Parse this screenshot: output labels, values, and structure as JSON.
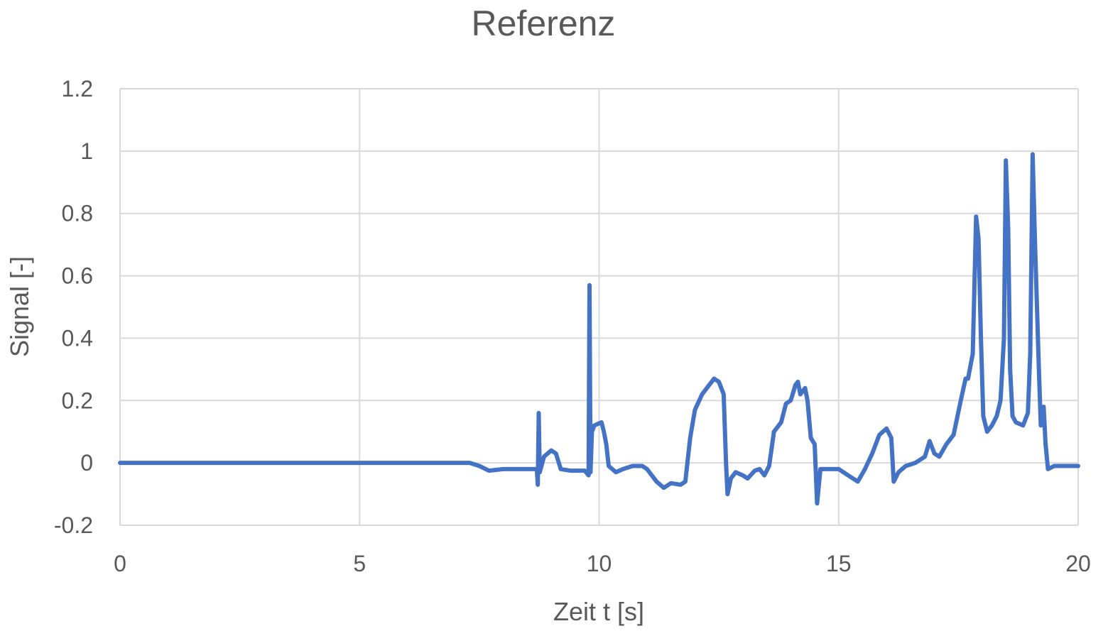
{
  "chart_data": {
    "type": "line",
    "title": "Referenz",
    "xlabel": "Zeit t [s]",
    "ylabel": "Signal [-]",
    "xlim": [
      0,
      20
    ],
    "ylim": [
      -0.2,
      1.2
    ],
    "x_ticks": [
      "0",
      "5",
      "10",
      "15",
      "20"
    ],
    "y_ticks": [
      "-0.2",
      "0",
      "0.2",
      "0.4",
      "0.6",
      "0.8",
      "1",
      "1.2"
    ],
    "grid": true,
    "legend": "none",
    "series": [
      {
        "color": "#4472c4",
        "points": [
          [
            0,
            0.0
          ],
          [
            1,
            0.0
          ],
          [
            2,
            0.0
          ],
          [
            3,
            0.0
          ],
          [
            4,
            0.0
          ],
          [
            5,
            0.0
          ],
          [
            6,
            0.0
          ],
          [
            7,
            0.0
          ],
          [
            7.3,
            0.0
          ],
          [
            7.5,
            -0.01
          ],
          [
            7.7,
            -0.025
          ],
          [
            8.0,
            -0.02
          ],
          [
            8.3,
            -0.02
          ],
          [
            8.6,
            -0.02
          ],
          [
            8.7,
            -0.02
          ],
          [
            8.72,
            -0.07
          ],
          [
            8.74,
            0.16
          ],
          [
            8.76,
            -0.03
          ],
          [
            8.85,
            0.02
          ],
          [
            9.0,
            0.04
          ],
          [
            9.1,
            0.03
          ],
          [
            9.2,
            -0.02
          ],
          [
            9.4,
            -0.025
          ],
          [
            9.7,
            -0.025
          ],
          [
            9.78,
            -0.04
          ],
          [
            9.8,
            0.57
          ],
          [
            9.82,
            -0.03
          ],
          [
            9.85,
            0.1
          ],
          [
            9.9,
            0.12
          ],
          [
            10.05,
            0.13
          ],
          [
            10.1,
            0.1
          ],
          [
            10.15,
            0.06
          ],
          [
            10.2,
            -0.01
          ],
          [
            10.35,
            -0.03
          ],
          [
            10.5,
            -0.02
          ],
          [
            10.7,
            -0.01
          ],
          [
            10.9,
            -0.01
          ],
          [
            11.0,
            -0.02
          ],
          [
            11.1,
            -0.04
          ],
          [
            11.2,
            -0.06
          ],
          [
            11.35,
            -0.08
          ],
          [
            11.5,
            -0.065
          ],
          [
            11.7,
            -0.07
          ],
          [
            11.8,
            -0.06
          ],
          [
            11.9,
            0.08
          ],
          [
            12.0,
            0.17
          ],
          [
            12.15,
            0.22
          ],
          [
            12.3,
            0.25
          ],
          [
            12.4,
            0.27
          ],
          [
            12.5,
            0.26
          ],
          [
            12.6,
            0.22
          ],
          [
            12.65,
            0.0
          ],
          [
            12.68,
            -0.1
          ],
          [
            12.75,
            -0.05
          ],
          [
            12.85,
            -0.03
          ],
          [
            13.0,
            -0.04
          ],
          [
            13.1,
            -0.05
          ],
          [
            13.25,
            -0.025
          ],
          [
            13.35,
            -0.02
          ],
          [
            13.45,
            -0.04
          ],
          [
            13.55,
            -0.01
          ],
          [
            13.65,
            0.1
          ],
          [
            13.8,
            0.13
          ],
          [
            13.9,
            0.19
          ],
          [
            14.0,
            0.2
          ],
          [
            14.1,
            0.25
          ],
          [
            14.15,
            0.26
          ],
          [
            14.2,
            0.22
          ],
          [
            14.3,
            0.24
          ],
          [
            14.35,
            0.2
          ],
          [
            14.42,
            0.08
          ],
          [
            14.5,
            0.06
          ],
          [
            14.55,
            -0.13
          ],
          [
            14.62,
            -0.02
          ],
          [
            14.75,
            -0.02
          ],
          [
            15.0,
            -0.02
          ],
          [
            15.2,
            -0.04
          ],
          [
            15.4,
            -0.06
          ],
          [
            15.55,
            -0.02
          ],
          [
            15.7,
            0.03
          ],
          [
            15.85,
            0.09
          ],
          [
            16.0,
            0.11
          ],
          [
            16.1,
            0.08
          ],
          [
            16.15,
            -0.06
          ],
          [
            16.25,
            -0.03
          ],
          [
            16.4,
            -0.01
          ],
          [
            16.6,
            0.0
          ],
          [
            16.8,
            0.02
          ],
          [
            16.9,
            0.07
          ],
          [
            17.0,
            0.03
          ],
          [
            17.1,
            0.02
          ],
          [
            17.25,
            0.06
          ],
          [
            17.4,
            0.09
          ],
          [
            17.55,
            0.2
          ],
          [
            17.65,
            0.27
          ],
          [
            17.7,
            0.27
          ],
          [
            17.8,
            0.35
          ],
          [
            17.87,
            0.79
          ],
          [
            17.92,
            0.72
          ],
          [
            17.97,
            0.4
          ],
          [
            18.02,
            0.15
          ],
          [
            18.1,
            0.1
          ],
          [
            18.2,
            0.12
          ],
          [
            18.3,
            0.15
          ],
          [
            18.38,
            0.2
          ],
          [
            18.45,
            0.4
          ],
          [
            18.49,
            0.97
          ],
          [
            18.54,
            0.75
          ],
          [
            18.58,
            0.3
          ],
          [
            18.63,
            0.15
          ],
          [
            18.7,
            0.13
          ],
          [
            18.85,
            0.12
          ],
          [
            18.95,
            0.16
          ],
          [
            19.0,
            0.35
          ],
          [
            19.05,
            0.99
          ],
          [
            19.1,
            0.7
          ],
          [
            19.18,
            0.3
          ],
          [
            19.22,
            0.12
          ],
          [
            19.28,
            0.18
          ],
          [
            19.32,
            0.06
          ],
          [
            19.37,
            -0.02
          ],
          [
            19.5,
            -0.01
          ],
          [
            19.7,
            -0.01
          ],
          [
            20.0,
            -0.01
          ]
        ]
      }
    ]
  }
}
